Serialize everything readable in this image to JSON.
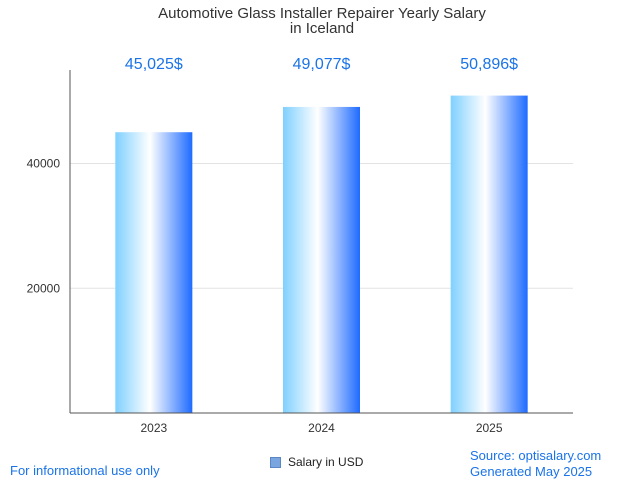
{
  "chart_data": {
    "type": "bar",
    "title_line1": "Automotive Glass Installer Repairer Yearly Salary",
    "title_line2": "in Iceland",
    "categories": [
      "2023",
      "2024",
      "2025"
    ],
    "series": [
      {
        "name": "Salary in USD",
        "values": [
          45025,
          49077,
          50896
        ]
      }
    ],
    "value_labels": [
      "45,025$",
      "49,077$",
      "50,896$"
    ],
    "yticks": [
      20000,
      40000
    ],
    "ylim": [
      0,
      55000
    ],
    "grid": true,
    "legend_position": "bottom-center",
    "colors": {
      "bar_light": "#dff4ff",
      "bar_mid": "#7fd0ff",
      "bar_dark": "#1e6bff",
      "value_label": "#1a73e8"
    }
  },
  "footer": {
    "left": "For informational use only",
    "source": "Source: optisalary.com",
    "generated": "Generated May 2025"
  }
}
